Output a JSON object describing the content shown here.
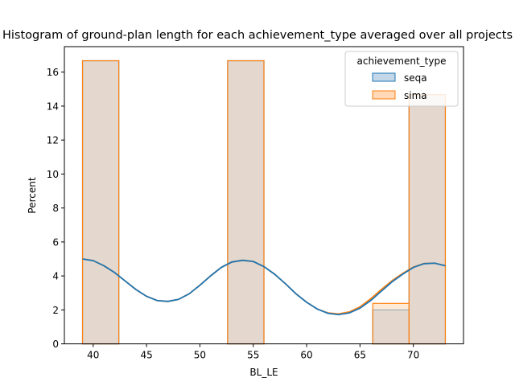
{
  "chart_data": {
    "type": "bar",
    "title": "Histogram of ground-plan length for each achievement_type averaged over all projects",
    "xlabel": "BL_LE",
    "ylabel": "Percent",
    "xlim": [
      37.3,
      74.7
    ],
    "ylim": [
      0,
      17.5
    ],
    "xticks": [
      40,
      45,
      50,
      55,
      60,
      65,
      70
    ],
    "yticks": [
      0,
      2,
      4,
      6,
      8,
      10,
      12,
      14,
      16
    ],
    "bin_edges": [
      39,
      42.4,
      45.8,
      49.2,
      52.6,
      56,
      59.4,
      62.8,
      66.2,
      69.6,
      73
    ],
    "grid": false,
    "legend": {
      "title": "achievement_type",
      "placement": "top-right"
    },
    "series": [
      {
        "name": "seqa",
        "color": "#1f77b4",
        "fill": "#c4d7e8",
        "values": [
          16.67,
          0,
          0,
          0,
          16.67,
          0,
          0,
          0,
          2.0,
          14.67
        ],
        "kde": {
          "x": [
            39,
            40,
            41,
            42,
            43,
            44,
            45,
            46,
            47,
            48,
            49,
            50,
            51,
            52,
            53,
            54,
            55,
            56,
            57,
            58,
            59,
            60,
            61,
            62,
            63,
            64,
            65,
            66,
            67,
            68,
            69,
            70,
            71,
            72,
            73
          ],
          "y": [
            5.0,
            4.9,
            4.6,
            4.2,
            3.7,
            3.2,
            2.8,
            2.55,
            2.5,
            2.62,
            2.95,
            3.45,
            4.0,
            4.5,
            4.82,
            4.92,
            4.85,
            4.55,
            4.1,
            3.55,
            2.95,
            2.45,
            2.05,
            1.8,
            1.72,
            1.82,
            2.1,
            2.55,
            3.1,
            3.65,
            4.1,
            4.5,
            4.72,
            4.75,
            4.6
          ]
        }
      },
      {
        "name": "sima",
        "color": "#ff7f0e",
        "fill": "#ffd9b8",
        "values": [
          16.67,
          0,
          0,
          0,
          16.67,
          0,
          0,
          0,
          2.38,
          14.67
        ],
        "kde": {
          "x": [
            39,
            40,
            41,
            42,
            43,
            44,
            45,
            46,
            47,
            48,
            49,
            50,
            51,
            52,
            53,
            54,
            55,
            56,
            57,
            58,
            59,
            60,
            61,
            62,
            63,
            64,
            65,
            66,
            67,
            68,
            69,
            70,
            71,
            72,
            73
          ],
          "y": [
            5.0,
            4.9,
            4.6,
            4.2,
            3.7,
            3.2,
            2.8,
            2.55,
            2.5,
            2.62,
            2.95,
            3.45,
            4.0,
            4.5,
            4.82,
            4.92,
            4.85,
            4.55,
            4.1,
            3.55,
            2.95,
            2.45,
            2.05,
            1.82,
            1.76,
            1.88,
            2.18,
            2.65,
            3.2,
            3.72,
            4.15,
            4.52,
            4.73,
            4.75,
            4.6
          ]
        }
      }
    ]
  }
}
